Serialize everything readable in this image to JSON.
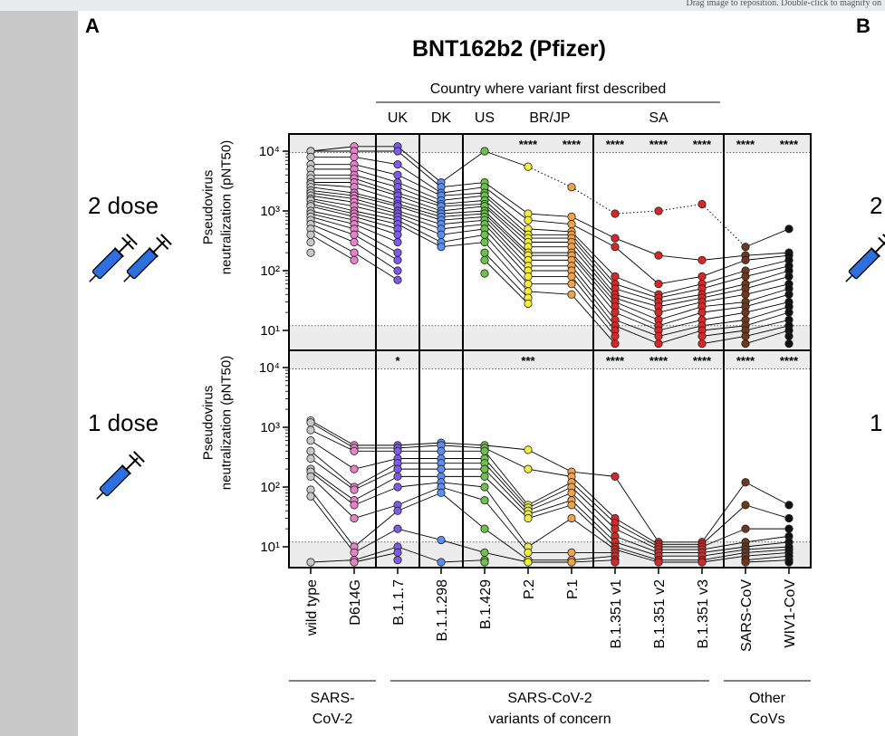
{
  "viewer": {
    "hint": "Drag image to reposition. Double-click to magnify on"
  },
  "figure": {
    "panel_labels": [
      "A",
      "B"
    ],
    "title": "BNT162b2 (Pfizer)",
    "country_header": "Country where variant first described",
    "countries": [
      "UK",
      "DK",
      "US",
      "BR/JP",
      "SA"
    ],
    "dose_labels": [
      "2 dose",
      "1 dose"
    ],
    "right_cut_labels": [
      "2",
      "1"
    ],
    "ylabel_line1": "Pseudovirus",
    "ylabel_line2": "neutralization (pNT50)",
    "group_labels": [
      {
        "line1": "SARS-",
        "line2": "CoV-2"
      },
      {
        "line1": "SARS-CoV-2",
        "line2": "variants of concern"
      },
      {
        "line1": "Other",
        "line2": "CoVs"
      }
    ],
    "colors": {
      "wild type": "#c8c8c8",
      "D614G": "#e882c8",
      "B.1.1.7": "#7a5ce6",
      "B.1.1.298": "#5b8ef0",
      "B.1.429": "#6cc24a",
      "P.2": "#f2ee3a",
      "P.1": "#f0a24a",
      "B.1.351": "#d62828",
      "SARS-CoV": "#6b3a1e",
      "WIV1-CoV": "#111111",
      "syringe": "#2e6fe0",
      "lod_band": "#ececec"
    }
  },
  "chart_data": [
    {
      "type": "scatter",
      "title": "2 dose",
      "ylabel": "Pseudovirus neutralization (pNT50)",
      "yscale": "log",
      "ylim": [
        5,
        20000
      ],
      "yticks": [
        "10¹",
        "10²",
        "10³",
        "10⁴"
      ],
      "categories": [
        "wild type",
        "D614G",
        "B.1.1.7",
        "B.1.1.298",
        "B.1.429",
        "P.2",
        "P.1",
        "B.1.351 v1",
        "B.1.351 v2",
        "B.1.351 v3",
        "SARS-CoV",
        "WIV1-CoV"
      ],
      "significance": [
        "",
        "",
        "",
        "",
        "",
        "****",
        "****",
        "****",
        "****",
        "****",
        "****",
        "****"
      ],
      "values": [
        [
          10000,
          10000,
          8000,
          6000,
          5000,
          4000,
          3500,
          3000,
          2800,
          2500,
          2200,
          2000,
          1800,
          1600,
          1500,
          1300,
          1200,
          1000,
          900,
          800,
          700,
          600,
          500,
          400,
          300,
          200
        ],
        [
          12000,
          10000,
          8000,
          6000,
          5000,
          4000,
          3500,
          3000,
          2500,
          2000,
          1800,
          1600,
          1400,
          1200,
          1000,
          900,
          800,
          700,
          600,
          500,
          400,
          300,
          200,
          150
        ],
        [
          12000,
          10000,
          6000,
          4000,
          3000,
          2500,
          2000,
          1800,
          1500,
          1300,
          1200,
          1000,
          900,
          800,
          700,
          600,
          500,
          400,
          300,
          200,
          150,
          100,
          70
        ],
        [
          3000,
          2500,
          2000,
          1800,
          1500,
          1300,
          1200,
          1000,
          900,
          800,
          700,
          600,
          500,
          400,
          300,
          250
        ],
        [
          10000,
          3000,
          2500,
          2000,
          1800,
          1500,
          1300,
          1200,
          1000,
          900,
          800,
          700,
          600,
          500,
          400,
          300,
          200,
          150,
          90
        ],
        [
          5500,
          900,
          700,
          500,
          400,
          350,
          300,
          250,
          200,
          180,
          150,
          120,
          100,
          80,
          60,
          45,
          35,
          28
        ],
        [
          2500,
          800,
          600,
          450,
          400,
          350,
          300,
          250,
          200,
          180,
          150,
          120,
          100,
          80,
          60,
          40
        ],
        [
          900,
          350,
          250,
          80,
          60,
          50,
          40,
          35,
          30,
          25,
          20,
          15,
          12,
          10,
          8,
          6
        ],
        [
          1000,
          180,
          60,
          40,
          35,
          30,
          25,
          20,
          15,
          12,
          10,
          8,
          6
        ],
        [
          1300,
          150,
          80,
          60,
          50,
          40,
          35,
          30,
          25,
          20,
          15,
          12,
          10,
          8,
          6
        ],
        [
          250,
          180,
          150,
          100,
          80,
          60,
          50,
          40,
          30,
          25,
          20,
          15,
          12,
          10,
          8,
          6
        ],
        [
          500,
          200,
          180,
          150,
          120,
          100,
          80,
          60,
          50,
          40,
          30,
          25,
          20,
          15,
          12,
          10,
          8,
          6
        ]
      ]
    },
    {
      "type": "scatter",
      "title": "1 dose",
      "ylabel": "Pseudovirus neutralization (pNT50)",
      "yscale": "log",
      "ylim": [
        5,
        20000
      ],
      "yticks": [
        "10¹",
        "10²",
        "10³",
        "10⁴"
      ],
      "categories": [
        "wild type",
        "D614G",
        "B.1.1.7",
        "B.1.1.298",
        "B.1.429",
        "P.2",
        "P.1",
        "B.1.351 v1",
        "B.1.351 v2",
        "B.1.351 v3",
        "SARS-CoV",
        "WIV1-CoV"
      ],
      "significance": [
        "",
        "",
        "*",
        "",
        "",
        "***",
        "",
        "****",
        "****",
        "****",
        "****",
        "****"
      ],
      "values": [
        [
          1300,
          1200,
          900,
          600,
          400,
          300,
          200,
          180,
          150,
          90,
          70,
          5
        ],
        [
          500,
          450,
          400,
          200,
          100,
          90,
          60,
          50,
          30,
          10,
          8,
          6,
          5
        ],
        [
          500,
          450,
          400,
          300,
          250,
          200,
          150,
          100,
          50,
          40,
          20,
          10,
          8,
          6
        ],
        [
          550,
          500,
          400,
          300,
          250,
          200,
          150,
          120,
          100,
          80,
          13,
          5
        ],
        [
          500,
          450,
          400,
          300,
          250,
          200,
          150,
          100,
          60,
          20,
          8,
          6,
          5
        ],
        [
          420,
          200,
          50,
          45,
          40,
          35,
          30,
          10,
          8,
          6,
          5
        ],
        [
          180,
          150,
          120,
          100,
          80,
          60,
          50,
          30,
          8,
          6,
          5
        ],
        [
          150,
          30,
          25,
          20,
          15,
          12,
          10,
          9,
          8,
          7,
          6,
          5
        ],
        [
          12,
          11,
          10,
          9,
          8,
          7,
          6,
          5
        ],
        [
          12,
          11,
          10,
          9,
          8,
          7,
          6,
          5
        ],
        [
          120,
          50,
          20,
          12,
          10,
          9,
          8,
          7,
          6,
          5
        ],
        [
          50,
          30,
          20,
          15,
          12,
          10,
          9,
          8,
          7,
          6,
          5
        ]
      ]
    }
  ]
}
